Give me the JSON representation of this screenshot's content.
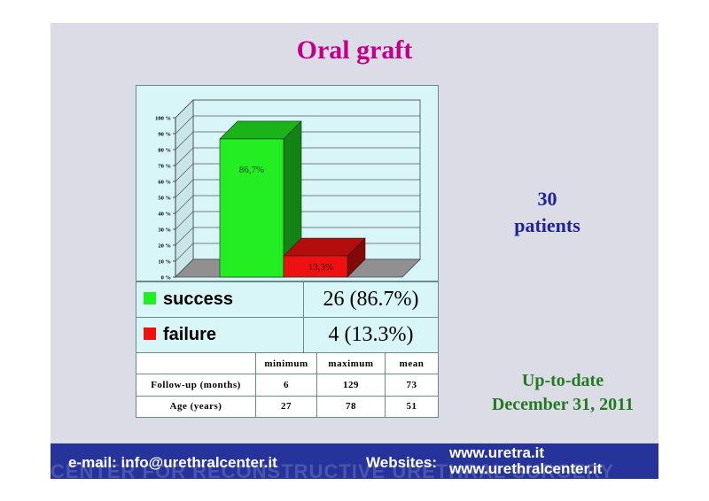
{
  "slide": {
    "title": "Oral graft",
    "patients_count": "30",
    "patients_label": "patients",
    "uptodate_line1": "Up-to-date",
    "uptodate_line2": "December 31, 2011",
    "colors": {
      "title": "#c0008c",
      "patients": "#2020a0",
      "uptodate": "#237a23",
      "footer": "#26339a"
    }
  },
  "chart_data": {
    "type": "bar",
    "categories": [
      "success",
      "failure"
    ],
    "values": [
      86.7,
      13.3
    ],
    "data_labels": [
      "86,7%",
      "13,3%"
    ],
    "colors": [
      "#22ee22",
      "#ee1111"
    ],
    "ylim": [
      0,
      100
    ],
    "yticks": [
      "0 %",
      "10 %",
      "20 %",
      "30 %",
      "40 %",
      "50 %",
      "60 %",
      "70 %",
      "80 %",
      "90 %",
      "100 %"
    ],
    "grid": true,
    "three_d": true
  },
  "legend": [
    {
      "label": "success",
      "value": "26 (86.7%)",
      "color": "#22ee22"
    },
    {
      "label": "failure",
      "value": "4 (13.3%)",
      "color": "#ee1111"
    }
  ],
  "stats": {
    "headers": [
      "",
      "minimum",
      "maximum",
      "mean"
    ],
    "rows": [
      {
        "label": "Follow-up (months)",
        "min": "6",
        "max": "129",
        "mean": "73"
      },
      {
        "label": "Age (years)",
        "min": "27",
        "max": "78",
        "mean": "51"
      }
    ]
  },
  "footer": {
    "email": "e-mail: info@urethralcenter.it",
    "websites_label": "Websites:",
    "url1": "www.uretra.it",
    "url2": "www.urethralcenter.it",
    "watermark": "CENTER FOR RECONSTRUCTIVE URETHRAL SURGERY"
  }
}
